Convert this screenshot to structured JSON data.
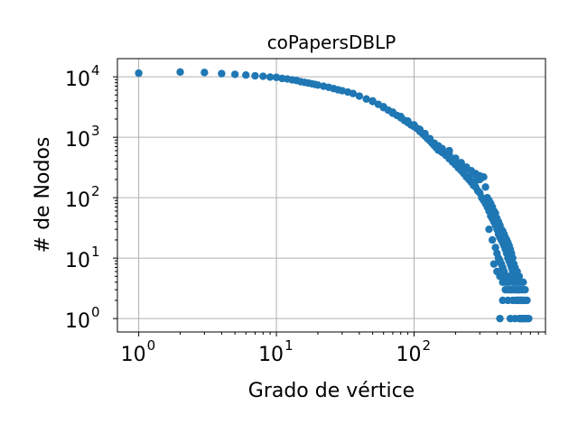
{
  "chart_data": {
    "type": "scatter",
    "title": "coPapersDBLP",
    "xlabel": "Grado de vértice",
    "ylabel": "# de Nodos",
    "xscale": "log",
    "yscale": "log",
    "xlim": [
      0.7,
      900
    ],
    "ylim": [
      0.6,
      20000
    ],
    "grid": true,
    "marker_color": "#1f77b4",
    "xticks": [
      {
        "base": "10",
        "exp": "0",
        "value": 1
      },
      {
        "base": "10",
        "exp": "1",
        "value": 10
      },
      {
        "base": "10",
        "exp": "2",
        "value": 100
      }
    ],
    "yticks": [
      {
        "base": "10",
        "exp": "0",
        "value": 1
      },
      {
        "base": "10",
        "exp": "1",
        "value": 10
      },
      {
        "base": "10",
        "exp": "2",
        "value": 100
      },
      {
        "base": "10",
        "exp": "3",
        "value": 1000
      },
      {
        "base": "10",
        "exp": "4",
        "value": 10000
      }
    ],
    "points": [
      [
        1,
        11500
      ],
      [
        2,
        12000
      ],
      [
        3,
        11800
      ],
      [
        4,
        11300
      ],
      [
        5,
        11000
      ],
      [
        6,
        10700
      ],
      [
        7,
        10400
      ],
      [
        8,
        10200
      ],
      [
        9,
        9900
      ],
      [
        10,
        9800
      ],
      [
        11,
        9400
      ],
      [
        12,
        9200
      ],
      [
        13,
        8900
      ],
      [
        14,
        8700
      ],
      [
        15,
        8300
      ],
      [
        16,
        8100
      ],
      [
        17,
        7900
      ],
      [
        18,
        7700
      ],
      [
        19,
        7500
      ],
      [
        20,
        7300
      ],
      [
        22,
        7000
      ],
      [
        24,
        6700
      ],
      [
        26,
        6400
      ],
      [
        28,
        6100
      ],
      [
        30,
        5900
      ],
      [
        33,
        5600
      ],
      [
        36,
        5300
      ],
      [
        40,
        4800
      ],
      [
        45,
        4300
      ],
      [
        50,
        3900
      ],
      [
        55,
        3500
      ],
      [
        60,
        3100
      ],
      [
        65,
        2800
      ],
      [
        70,
        2500
      ],
      [
        75,
        2300
      ],
      [
        80,
        2100
      ],
      [
        85,
        1900
      ],
      [
        90,
        1750
      ],
      [
        95,
        1600
      ],
      [
        100,
        1500
      ],
      [
        105,
        1400
      ],
      [
        110,
        1250
      ],
      [
        115,
        1150
      ],
      [
        120,
        1050
      ],
      [
        125,
        950
      ],
      [
        130,
        880
      ],
      [
        135,
        800
      ],
      [
        140,
        730
      ],
      [
        145,
        670
      ],
      [
        150,
        610
      ],
      [
        160,
        560
      ],
      [
        170,
        500
      ],
      [
        180,
        440
      ],
      [
        190,
        390
      ],
      [
        200,
        350
      ],
      [
        210,
        310
      ],
      [
        220,
        280
      ],
      [
        230,
        250
      ],
      [
        240,
        220
      ],
      [
        250,
        200
      ],
      [
        260,
        180
      ],
      [
        270,
        160
      ],
      [
        280,
        150
      ],
      [
        290,
        130
      ],
      [
        300,
        120
      ],
      [
        310,
        100
      ],
      [
        320,
        90
      ],
      [
        330,
        80
      ],
      [
        340,
        70
      ],
      [
        350,
        60
      ],
      [
        360,
        50
      ],
      [
        370,
        45
      ],
      [
        380,
        40
      ],
      [
        390,
        35
      ],
      [
        400,
        30
      ],
      [
        410,
        25
      ],
      [
        420,
        22
      ],
      [
        430,
        20
      ],
      [
        440,
        18
      ],
      [
        450,
        16
      ],
      [
        460,
        14
      ],
      [
        470,
        12
      ],
      [
        480,
        10
      ],
      [
        490,
        9
      ],
      [
        500,
        8
      ],
      [
        510,
        7
      ],
      [
        520,
        6
      ],
      [
        530,
        5
      ],
      [
        540,
        5
      ],
      [
        550,
        4
      ],
      [
        560,
        4
      ],
      [
        570,
        3
      ],
      [
        580,
        3
      ],
      [
        590,
        2
      ],
      [
        600,
        2
      ],
      [
        620,
        2
      ],
      [
        640,
        1
      ],
      [
        660,
        1
      ],
      [
        180,
        600
      ],
      [
        200,
        450
      ],
      [
        220,
        380
      ],
      [
        240,
        320
      ],
      [
        260,
        280
      ],
      [
        280,
        250
      ],
      [
        300,
        200
      ],
      [
        320,
        220
      ],
      [
        330,
        150
      ],
      [
        340,
        100
      ],
      [
        350,
        90
      ],
      [
        360,
        80
      ],
      [
        370,
        70
      ],
      [
        380,
        60
      ],
      [
        390,
        55
      ],
      [
        400,
        45
      ],
      [
        410,
        40
      ],
      [
        420,
        35
      ],
      [
        430,
        30
      ],
      [
        440,
        28
      ],
      [
        450,
        25
      ],
      [
        460,
        22
      ],
      [
        470,
        20
      ],
      [
        480,
        18
      ],
      [
        490,
        16
      ],
      [
        500,
        14
      ],
      [
        510,
        12
      ],
      [
        520,
        10
      ],
      [
        530,
        8
      ],
      [
        540,
        7
      ],
      [
        550,
        6
      ],
      [
        560,
        5
      ],
      [
        570,
        5
      ],
      [
        580,
        4
      ],
      [
        600,
        3
      ],
      [
        620,
        3
      ],
      [
        640,
        2
      ],
      [
        660,
        2
      ],
      [
        680,
        1
      ],
      [
        420,
        1
      ],
      [
        440,
        2
      ],
      [
        460,
        3
      ],
      [
        480,
        2
      ],
      [
        500,
        1
      ],
      [
        520,
        2
      ],
      [
        540,
        1
      ],
      [
        560,
        2
      ],
      [
        580,
        1
      ],
      [
        600,
        1
      ],
      [
        620,
        1
      ],
      [
        350,
        30
      ],
      [
        370,
        20
      ],
      [
        390,
        15
      ],
      [
        410,
        10
      ],
      [
        430,
        8
      ],
      [
        450,
        6
      ],
      [
        470,
        5
      ],
      [
        490,
        4
      ],
      [
        510,
        3
      ],
      [
        530,
        3
      ],
      [
        550,
        2
      ],
      [
        570,
        2
      ],
      [
        590,
        1
      ],
      [
        400,
        12
      ],
      [
        420,
        9
      ],
      [
        440,
        7
      ],
      [
        460,
        5
      ],
      [
        480,
        4
      ],
      [
        500,
        3
      ],
      [
        520,
        4
      ],
      [
        540,
        3
      ],
      [
        560,
        3
      ],
      [
        580,
        2
      ],
      [
        600,
        2
      ],
      [
        610,
        1
      ],
      [
        640,
        1
      ],
      [
        380,
        8
      ],
      [
        400,
        6
      ],
      [
        420,
        5
      ],
      [
        440,
        4
      ],
      [
        460,
        4
      ],
      [
        480,
        3
      ],
      [
        500,
        5
      ],
      [
        520,
        6
      ],
      [
        540,
        4
      ],
      [
        560,
        6
      ],
      [
        580,
        5
      ],
      [
        600,
        4
      ],
      [
        620,
        4
      ],
      [
        640,
        3
      ],
      [
        300,
        230
      ],
      [
        280,
        190
      ],
      [
        260,
        240
      ],
      [
        240,
        300
      ],
      [
        220,
        350
      ],
      [
        200,
        420
      ],
      [
        180,
        520
      ],
      [
        160,
        650
      ],
      [
        150,
        720
      ],
      [
        140,
        800
      ],
      [
        130,
        950
      ],
      [
        120,
        1150
      ],
      [
        110,
        1350
      ],
      [
        100,
        1600
      ],
      [
        90,
        1850
      ],
      [
        80,
        2200
      ],
      [
        70,
        2600
      ],
      [
        60,
        3200
      ],
      [
        50,
        4000
      ]
    ]
  }
}
